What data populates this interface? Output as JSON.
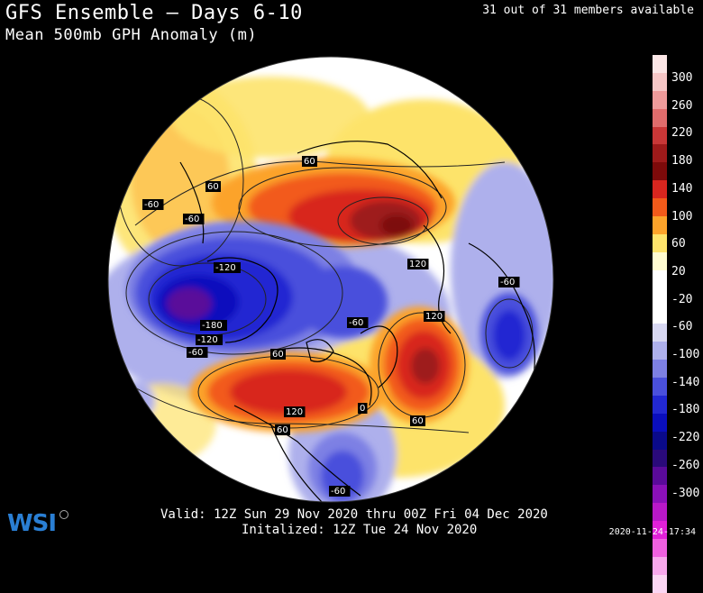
{
  "header": {
    "title": "GFS Ensemble — Days 6-10",
    "subtitle": "Mean 500mb GPH Anomaly (m)",
    "members": "31 out of 31 members available"
  },
  "footer": {
    "valid": "Valid: 12Z Sun 29 Nov 2020 thru 00Z Fri 04 Dec 2020",
    "initialized": "Initalized: 12Z Tue 24 Nov 2020",
    "timestamp": "2020-11-24-17:34",
    "logo": "WSI"
  },
  "legend": {
    "labels": [
      "300",
      "260",
      "220",
      "180",
      "140",
      "100",
      "60",
      "20",
      "-20",
      "-60",
      "-100",
      "-140",
      "-180",
      "-220",
      "-260",
      "-300"
    ],
    "colors": [
      "#fbe6e6",
      "#f6c6c6",
      "#ee9a9a",
      "#e06c6c",
      "#c93737",
      "#9e1a1a",
      "#7d0a0a",
      "#d8261f",
      "#f25a1a",
      "#fca32a",
      "#fde36b",
      "#fffbd0",
      "#ffffff",
      "#ffffff",
      "#ffffff",
      "#d8d8f2",
      "#aeb0ec",
      "#7d80e4",
      "#4a50dc",
      "#2228d2",
      "#0a0ebd",
      "#0a0a8a",
      "#2a0a7a",
      "#5a0a9a",
      "#8a10b8",
      "#b818c8",
      "#e020d8",
      "#f060e0",
      "#f8a8ec",
      "#fbd6f3"
    ]
  },
  "map_labels": [
    {
      "name": "label-60-nw",
      "text": "-60"
    },
    {
      "name": "label-60-pacific",
      "text": "-60"
    },
    {
      "name": "label-120-pacific",
      "text": "-120"
    },
    {
      "name": "label-180-pacific",
      "text": "-180"
    },
    {
      "name": "label-120b-pacific",
      "text": "-120"
    },
    {
      "name": "label-60b-pacific",
      "text": "-60"
    },
    {
      "name": "label-60-arctic",
      "text": "60"
    },
    {
      "name": "label-120-siberia",
      "text": "120"
    },
    {
      "name": "label-60-europe",
      "text": "-60"
    },
    {
      "name": "label-120-atlantic",
      "text": "120"
    },
    {
      "name": "label-60-center",
      "text": "-60"
    },
    {
      "name": "label-60-canada",
      "text": "60"
    },
    {
      "name": "label-120-canada",
      "text": "120"
    },
    {
      "name": "label-60-us",
      "text": "60"
    },
    {
      "name": "label-60-atlantic",
      "text": "60"
    },
    {
      "name": "label-60-southeast",
      "text": "-60"
    },
    {
      "name": "label-0-greenland",
      "text": "0"
    },
    {
      "name": "label-60-north",
      "text": "60"
    }
  ]
}
